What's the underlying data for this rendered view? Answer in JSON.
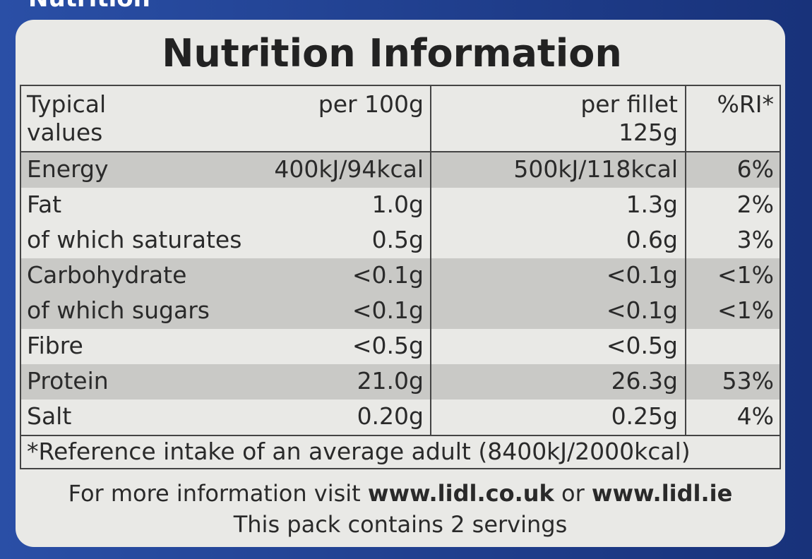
{
  "header": {
    "tab": "Nutrition",
    "title": "Nutrition Information"
  },
  "table": {
    "columns": [
      "Typical values",
      "per 100g",
      "per fillet 125g",
      "%RI*"
    ],
    "rows": [
      [
        "Energy",
        "400kJ/94kcal",
        "500kJ/118kcal",
        "6%"
      ],
      [
        "Fat",
        "1.0g",
        "1.3g",
        "2%"
      ],
      [
        "of which saturates",
        "0.5g",
        "0.6g",
        "3%"
      ],
      [
        "Carbohydrate",
        "<0.1g",
        "<0.1g",
        "<1%"
      ],
      [
        "of which sugars",
        "<0.1g",
        "<0.1g",
        "<1%"
      ],
      [
        "Fibre",
        "<0.5g",
        "<0.5g",
        null
      ],
      [
        "Protein",
        "21.0g",
        "26.3g",
        "53%"
      ],
      [
        "Salt",
        "0.20g",
        "0.25g",
        "4%"
      ]
    ],
    "footnote": "*Reference intake of an average adult (8400kJ/2000kcal)"
  },
  "footer": {
    "line1": [
      "For more information visit ",
      "www.lidl.co.uk",
      " or ",
      "www.lidl.ie"
    ],
    "line2": "This pack contains 2 servings"
  }
}
